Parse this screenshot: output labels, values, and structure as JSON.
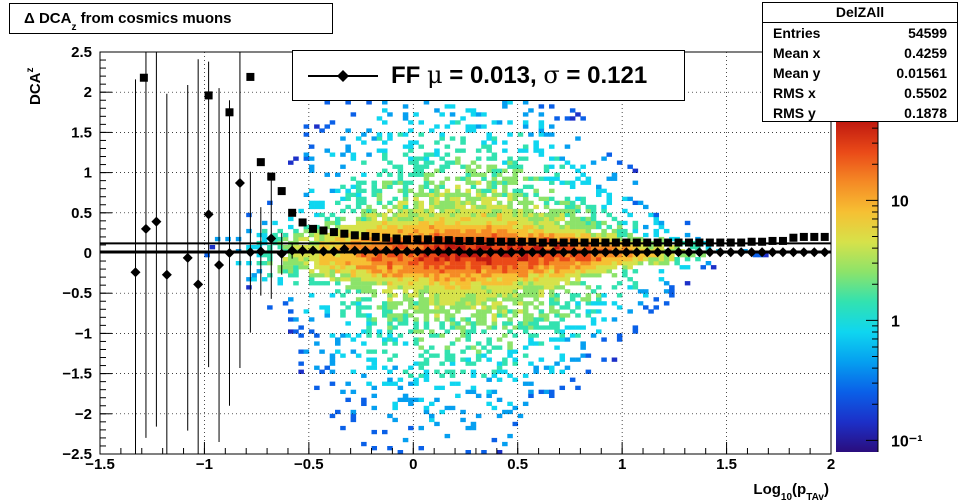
{
  "title": {
    "main": "Δ DCA",
    "sub": "z",
    "rest": " from cosmics muons"
  },
  "stats": {
    "name": "DelZAll",
    "rows": [
      {
        "label": "Entries",
        "value": "54599"
      },
      {
        "label": "Mean x",
        "value": "0.4259"
      },
      {
        "label": "Mean y",
        "value": "0.01561"
      },
      {
        "label": "RMS x",
        "value": "0.5502"
      },
      {
        "label": "RMS y",
        "value": "0.1878"
      }
    ]
  },
  "legend": {
    "prefix": "FF ",
    "mu": "μ",
    "mid": " =  0.013, ",
    "sigma": "σ",
    "suffix": " =   0.121"
  },
  "chart_data": {
    "type": "heatmap",
    "xlabel": "Log",
    "xlabel_sub": "10",
    "xlabel_rest": "(p",
    "xlabel_sub2": "TAv",
    "xlabel_end": ")",
    "ylabel": "DCA",
    "ylabel_sub": "z",
    "xlim": [
      -1.5,
      2
    ],
    "ylim": [
      -2.5,
      2.5
    ],
    "x_ticks": [
      "−1.5",
      "−1",
      "−0.5",
      "0",
      "0.5",
      "1",
      "1.5",
      "2"
    ],
    "x_tick_values": [
      -1.5,
      -1,
      -0.5,
      0,
      0.5,
      1,
      1.5,
      2
    ],
    "y_ticks": [
      "2.5",
      "2",
      "1.5",
      "1",
      "0.5",
      "0",
      "−0.5",
      "−1",
      "−1.5",
      "−2",
      "−2.5"
    ],
    "y_tick_values": [
      2.5,
      2,
      1.5,
      1,
      0.5,
      0,
      -0.5,
      -1,
      -1.5,
      -2,
      -2.5
    ],
    "z_scale": "log",
    "z_ticks": [
      "10",
      "1",
      "10⁻¹"
    ],
    "z_tick_values": [
      10,
      1,
      0.1
    ],
    "z_range": [
      0.08,
      45
    ],
    "grid": true,
    "palette": [
      "#2a0d7d",
      "#1c30c8",
      "#0a60e8",
      "#059ff0",
      "#0fd6f0",
      "#32e2b0",
      "#8ce36a",
      "#d6e24a",
      "#f6c033",
      "#f58a25",
      "#ea4a18",
      "#c01a10"
    ],
    "fit_line": {
      "y": 0.013
    },
    "sigma_series": {
      "x": [
        -1.29,
        -0.98,
        -0.88,
        -0.78,
        -0.73,
        -0.68,
        -0.63,
        -0.58,
        -0.53,
        -0.48,
        -0.43,
        -0.38,
        -0.33,
        -0.28,
        -0.23,
        -0.18,
        -0.13,
        -0.08,
        -0.03,
        0.02,
        0.07,
        0.12,
        0.17,
        0.22,
        0.27,
        0.32,
        0.37,
        0.42,
        0.47,
        0.52,
        0.57,
        0.62,
        0.67,
        0.72,
        0.77,
        0.82,
        0.87,
        0.92,
        0.97,
        1.02,
        1.07,
        1.12,
        1.17,
        1.22,
        1.27,
        1.32,
        1.37,
        1.42,
        1.47,
        1.52,
        1.57,
        1.62,
        1.67,
        1.72,
        1.77,
        1.82,
        1.87,
        1.92,
        1.97
      ],
      "y": [
        2.18,
        1.96,
        1.75,
        2.19,
        1.13,
        0.95,
        0.77,
        0.5,
        0.38,
        0.3,
        0.28,
        0.26,
        0.24,
        0.22,
        0.21,
        0.2,
        0.19,
        0.18,
        0.17,
        0.17,
        0.17,
        0.16,
        0.16,
        0.15,
        0.15,
        0.15,
        0.14,
        0.14,
        0.14,
        0.14,
        0.14,
        0.13,
        0.13,
        0.13,
        0.13,
        0.13,
        0.13,
        0.13,
        0.13,
        0.13,
        0.13,
        0.13,
        0.13,
        0.13,
        0.13,
        0.13,
        0.13,
        0.13,
        0.13,
        0.13,
        0.13,
        0.14,
        0.14,
        0.15,
        0.15,
        0.19,
        0.2,
        0.2,
        0.2
      ]
    },
    "mean_series": {
      "x": [
        -1.33,
        -1.28,
        -1.23,
        -1.18,
        -1.08,
        -1.03,
        -0.98,
        -0.93,
        -0.88,
        -0.83,
        -0.78,
        -0.73,
        -0.68,
        -0.63,
        -0.58,
        -0.53,
        -0.48,
        -0.43,
        -0.38,
        -0.33,
        -0.28,
        -0.23,
        -0.18,
        -0.13,
        -0.08,
        -0.03,
        0.02,
        0.07,
        0.12,
        0.17,
        0.22,
        0.27,
        0.32,
        0.37,
        0.42,
        0.47,
        0.52,
        0.57,
        0.62,
        0.67,
        0.72,
        0.77,
        0.82,
        0.87,
        0.92,
        0.97,
        1.02,
        1.07,
        1.12,
        1.17,
        1.22,
        1.27,
        1.32,
        1.37,
        1.42,
        1.47,
        1.52,
        1.57,
        1.62,
        1.67,
        1.72,
        1.77,
        1.82,
        1.87,
        1.92,
        1.97
      ],
      "y": [
        -0.24,
        0.3,
        0.39,
        -0.27,
        -0.06,
        -0.39,
        0.48,
        -0.15,
        0.0,
        0.87,
        0.01,
        0.02,
        0.18,
        -0.01,
        0.03,
        0.03,
        0.03,
        0.02,
        0.02,
        0.05,
        0.03,
        0.03,
        0.02,
        0.03,
        0.02,
        0.02,
        0.02,
        0.02,
        0.02,
        0.02,
        0.02,
        0.01,
        0.01,
        0.01,
        0.01,
        0.01,
        0.01,
        0.01,
        0.01,
        0.01,
        0.01,
        0.01,
        0.01,
        0.01,
        0.01,
        0.01,
        0.01,
        0.01,
        0.01,
        0.01,
        0.01,
        0.01,
        0.01,
        0.01,
        0.01,
        0.01,
        0.01,
        0.01,
        0.01,
        0.01,
        0.01,
        0.01,
        0.01,
        0.01,
        0.01,
        0.01
      ],
      "err": [
        2.4,
        2.6,
        2.55,
        2.25,
        2.15,
        2.8,
        1.9,
        2.2,
        1.9,
        2.3,
        1.0,
        0.55,
        0.75,
        0.26,
        0.1,
        0.07,
        0.05,
        0.04,
        0.04,
        0.03,
        0.03,
        0.02,
        0.02,
        0.02,
        0.02,
        0.02,
        0.02,
        0.02,
        0.02,
        0.02,
        0.02,
        0.02,
        0.02,
        0.02,
        0.02,
        0.02,
        0.02,
        0.02,
        0.02,
        0.02,
        0.02,
        0.02,
        0.02,
        0.02,
        0.02,
        0.02,
        0.02,
        0.02,
        0.02,
        0.02,
        0.02,
        0.02,
        0.02,
        0.02,
        0.02,
        0.02,
        0.02,
        0.02,
        0.02,
        0.02,
        0.02,
        0.02,
        0.02,
        0.02,
        0.02,
        0.02
      ]
    }
  }
}
